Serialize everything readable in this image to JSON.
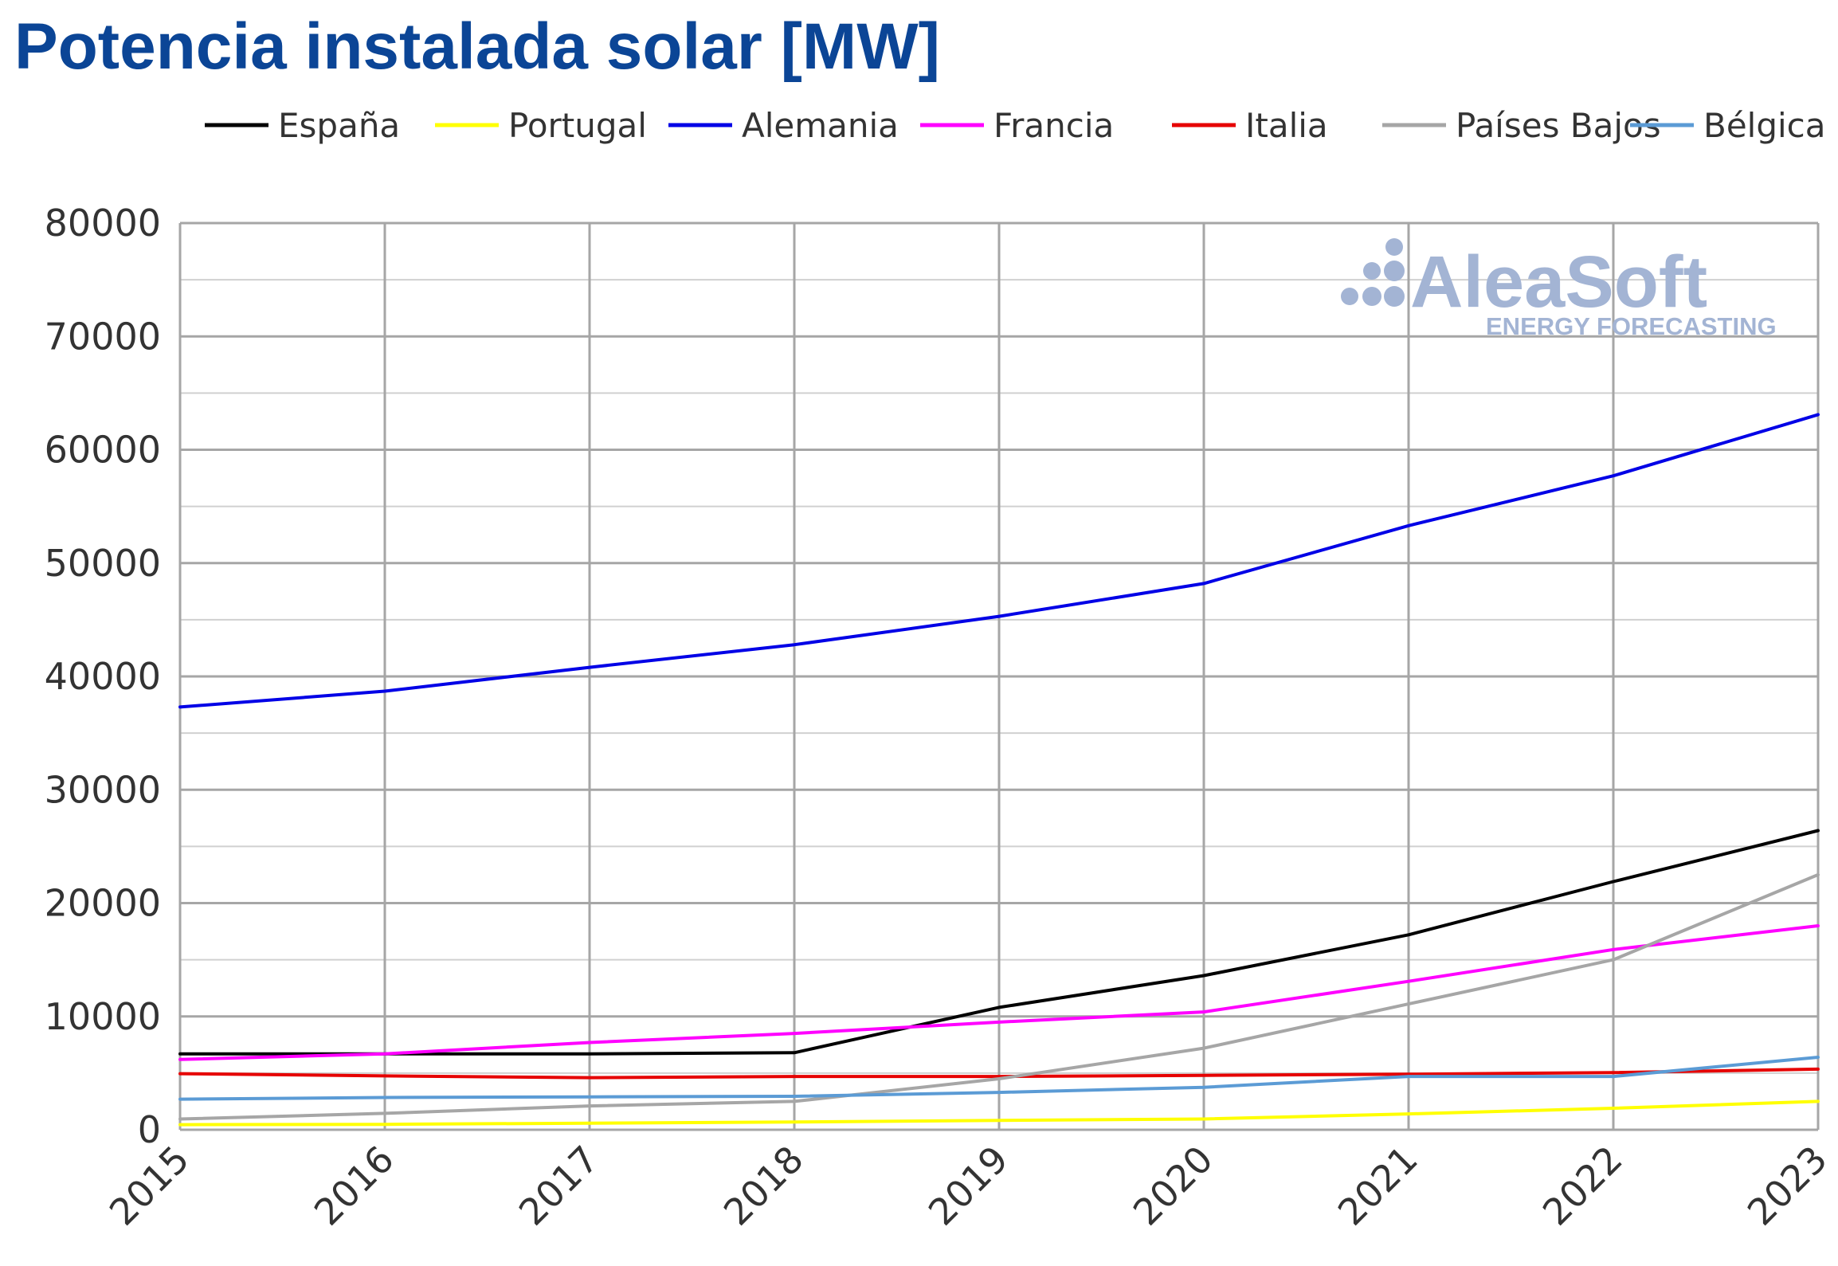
{
  "chart_data": {
    "type": "line",
    "title": "Potencia instalada solar [MW]",
    "xlabel": "",
    "ylabel": "",
    "x": [
      "2015",
      "2016",
      "2017",
      "2018",
      "2019",
      "2020",
      "2021",
      "2022",
      "2023"
    ],
    "ylim": [
      0,
      80000
    ],
    "yticks": [
      "0",
      "10000",
      "20000",
      "30000",
      "40000",
      "50000",
      "60000",
      "70000",
      "80000"
    ],
    "grid": true,
    "legend_position": "top",
    "series": [
      {
        "name": "España",
        "color": "#000000",
        "values": [
          6700,
          6700,
          6700,
          6800,
          10800,
          13600,
          17200,
          21900,
          26400
        ]
      },
      {
        "name": "Portugal",
        "color": "#ffff00",
        "values": [
          450,
          480,
          580,
          680,
          830,
          950,
          1400,
          1900,
          2500
        ]
      },
      {
        "name": "Alemania",
        "color": "#0000e6",
        "values": [
          37300,
          38700,
          40800,
          42800,
          45300,
          48200,
          53300,
          57700,
          63100
        ]
      },
      {
        "name": "Francia",
        "color": "#ff00ff",
        "values": [
          6200,
          6700,
          7700,
          8500,
          9500,
          10400,
          13100,
          15900,
          18000
        ]
      },
      {
        "name": "Italia",
        "color": "#e60000",
        "values": [
          4950,
          4750,
          4600,
          4700,
          4700,
          4800,
          4900,
          5050,
          5350
        ]
      },
      {
        "name": "Países Bajos",
        "color": "#a6a6a6",
        "values": [
          950,
          1450,
          2100,
          2500,
          4500,
          7200,
          11100,
          15000,
          22500
        ]
      },
      {
        "name": "Bélgica",
        "color": "#5b9bd5",
        "values": [
          2700,
          2850,
          2900,
          2950,
          3300,
          3750,
          4700,
          4700,
          6400
        ]
      }
    ]
  },
  "watermark": {
    "brand": "AleaSoft",
    "tagline": "ENERGY FORECASTING"
  }
}
